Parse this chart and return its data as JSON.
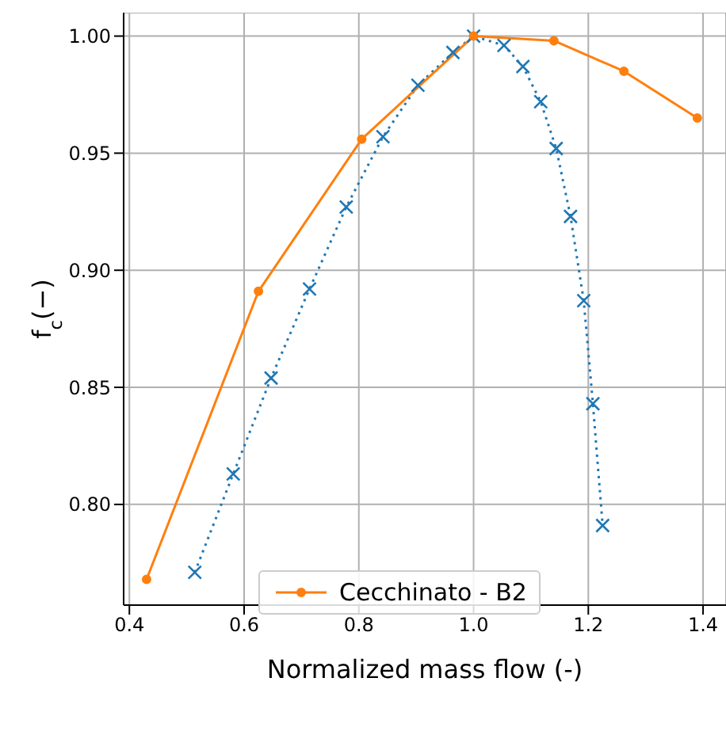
{
  "chart_data": {
    "type": "line",
    "xlabel": "Normalized mass flow (-)",
    "ylabel": "f$_{c}$(−)",
    "xlim": [
      0.39,
      1.44
    ],
    "xticks": [
      {
        "value": 0.4,
        "label": "0.4"
      },
      {
        "value": 0.6,
        "label": "0.6"
      },
      {
        "value": 0.8,
        "label": "0.8"
      },
      {
        "value": 1.0,
        "label": "1.0"
      },
      {
        "value": 1.2,
        "label": "1.2"
      },
      {
        "value": 1.4,
        "label": "1.4"
      }
    ],
    "ylim": [
      0.757,
      1.01
    ],
    "yticks": [
      {
        "value": 0.8,
        "label": "0.80"
      },
      {
        "value": 0.85,
        "label": "0.85"
      },
      {
        "value": 0.9,
        "label": "0.90"
      },
      {
        "value": 0.95,
        "label": "0.95"
      },
      {
        "value": 1.0,
        "label": "1.00"
      }
    ],
    "grid": true,
    "legend": "bottom",
    "series": [
      {
        "color": "#1f77b4",
        "marker": "cross",
        "line_style": "dotted",
        "x": [
          0.514,
          0.581,
          0.647,
          0.714,
          0.778,
          0.842,
          0.903,
          0.964,
          1.0,
          1.053,
          1.086,
          1.117,
          1.144,
          1.169,
          1.192,
          1.208,
          1.225
        ],
        "values": [
          0.771,
          0.813,
          0.854,
          0.892,
          0.927,
          0.957,
          0.979,
          0.993,
          1.0,
          0.996,
          0.987,
          0.972,
          0.952,
          0.923,
          0.887,
          0.843,
          0.791
        ]
      },
      {
        "name": "Cecchinato - B2",
        "color": "#ff7f0e",
        "marker": "circle",
        "line_style": "solid",
        "x": [
          0.43,
          0.625,
          0.805,
          1.0,
          1.14,
          1.262,
          1.39
        ],
        "values": [
          0.768,
          0.891,
          0.956,
          1.0,
          0.998,
          0.985,
          0.965
        ]
      }
    ]
  }
}
